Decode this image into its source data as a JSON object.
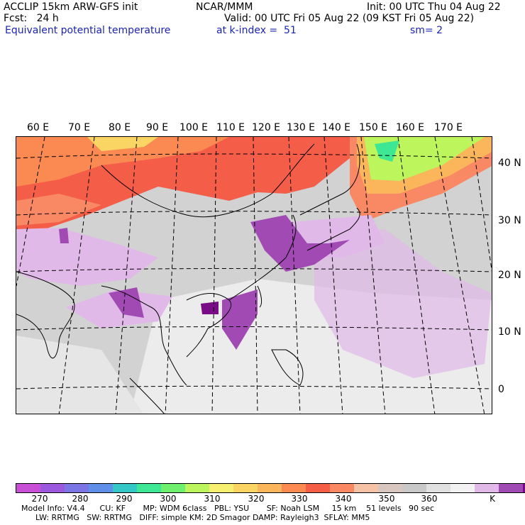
{
  "header": {
    "model": "ACCLIP 15km ARW-GFS init",
    "org": "NCAR/MMM",
    "init": "Init: 00 UTC Thu 04 Aug 22",
    "fcst": "Fcst:   24 h",
    "valid": "Valid: 00 UTC Fri 05 Aug 22 (09 KST Fri 05 Aug 22)",
    "field": "Equivalent potential temperature",
    "level": "at k-index =  51",
    "smoothing": "sm= 2"
  },
  "map": {
    "lon_labels": [
      "60 E",
      "70 E",
      "80 E",
      "90 E",
      "100 E",
      "110 E",
      "120 E",
      "130 E",
      "140 E",
      "150 E",
      "160 E",
      "170 E"
    ],
    "lat_labels": [
      "40 N",
      "30 N",
      "20 N",
      "10 N",
      "0"
    ]
  },
  "colorbar": {
    "colors": [
      "#c84fd6",
      "#9d58e0",
      "#7b75e6",
      "#5f8fe9",
      "#33c7c6",
      "#3ee793",
      "#6ef06e",
      "#bdf55c",
      "#f6ef72",
      "#fbd564",
      "#fbb55a",
      "#fa8a52",
      "#f45d48",
      "#f88964",
      "#f6c2a6",
      "#d9c7bf",
      "#c8c8c8",
      "#e1e1e1",
      "#f2f2f2",
      "#e1b9e8",
      "#a24ab4",
      "#7a0b87"
    ],
    "tick_labels": [
      "270",
      "280",
      "290",
      "300",
      "310",
      "320",
      "330",
      "340",
      "350",
      "360"
    ],
    "unit": "K"
  },
  "footer": {
    "line1": "Model Info: V4.4      CU: KF       MP: WDM 6class   PBL: YSU       SF: Noah LSM     15 km    51 levels   90 sec",
    "line2": "LW: RRTMG   SW: RRTMG   DIFF: simple KM: 2D Smagor DAMP: Rayleigh3  SFLAY: MM5"
  }
}
